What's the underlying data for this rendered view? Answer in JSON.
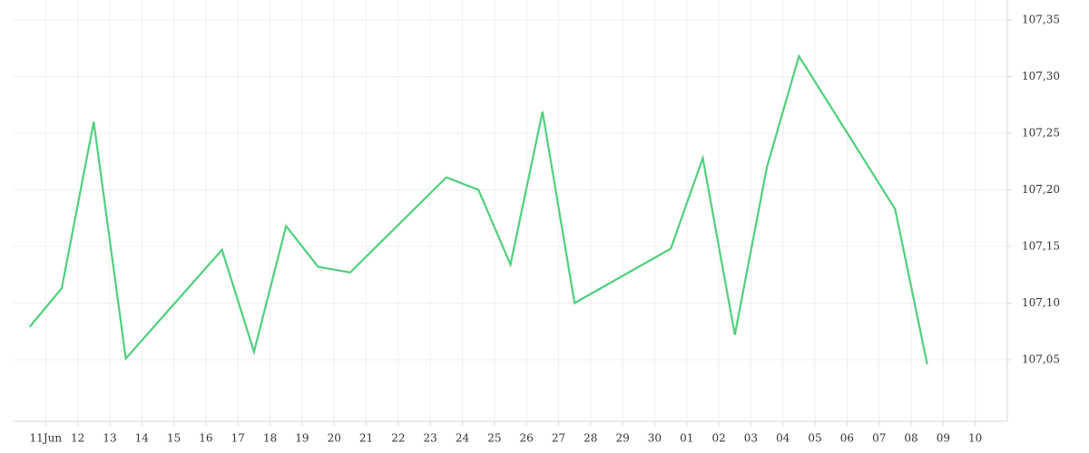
{
  "chart_data": {
    "type": "line",
    "x": [
      -0.5,
      0.5,
      1.5,
      2.5,
      5.5,
      6.5,
      7.5,
      8.5,
      9.5,
      12.5,
      13.5,
      14.5,
      15.5,
      16.5,
      19.5,
      20.5,
      21.5,
      22.5,
      23.5,
      26.5,
      27.5
    ],
    "series": [
      {
        "color": "#4fd07c",
        "values": [
          107.079,
          107.113,
          107.26,
          107.051,
          107.147,
          107.057,
          107.168,
          107.132,
          107.127,
          107.211,
          107.2,
          107.134,
          107.269,
          107.1,
          107.148,
          107.228,
          107.072,
          107.22,
          107.318,
          107.183,
          107.046
        ]
      }
    ],
    "xlim": [
      -1,
      30
    ],
    "xticks": [
      {
        "value": 0,
        "label": "11Jun"
      },
      {
        "value": 1,
        "label": "12"
      },
      {
        "value": 2,
        "label": "13"
      },
      {
        "value": 3,
        "label": "14"
      },
      {
        "value": 4,
        "label": "15"
      },
      {
        "value": 5,
        "label": "16"
      },
      {
        "value": 6,
        "label": "17"
      },
      {
        "value": 7,
        "label": "18"
      },
      {
        "value": 8,
        "label": "19"
      },
      {
        "value": 9,
        "label": "20"
      },
      {
        "value": 10,
        "label": "21"
      },
      {
        "value": 11,
        "label": "22"
      },
      {
        "value": 12,
        "label": "23"
      },
      {
        "value": 13,
        "label": "24"
      },
      {
        "value": 14,
        "label": "25"
      },
      {
        "value": 15,
        "label": "26"
      },
      {
        "value": 16,
        "label": "27"
      },
      {
        "value": 17,
        "label": "28"
      },
      {
        "value": 18,
        "label": "29"
      },
      {
        "value": 19,
        "label": "30"
      },
      {
        "value": 20,
        "label": "01"
      },
      {
        "value": 21,
        "label": "02"
      },
      {
        "value": 22,
        "label": "03"
      },
      {
        "value": 23,
        "label": "04"
      },
      {
        "value": 24,
        "label": "05"
      },
      {
        "value": 25,
        "label": "06"
      },
      {
        "value": 26,
        "label": "07"
      },
      {
        "value": 27,
        "label": "08"
      },
      {
        "value": 28,
        "label": "09"
      },
      {
        "value": 29,
        "label": "10"
      }
    ],
    "ylim": [
      107.0,
      107.36
    ],
    "yticks": [
      {
        "value": 107.05,
        "label": "107,05"
      },
      {
        "value": 107.1,
        "label": "107,10"
      },
      {
        "value": 107.15,
        "label": "107,15"
      },
      {
        "value": 107.2,
        "label": "107,20"
      },
      {
        "value": 107.25,
        "label": "107,25"
      },
      {
        "value": 107.3,
        "label": "107,30"
      },
      {
        "value": 107.35,
        "label": "107,35"
      }
    ],
    "grid": true
  }
}
